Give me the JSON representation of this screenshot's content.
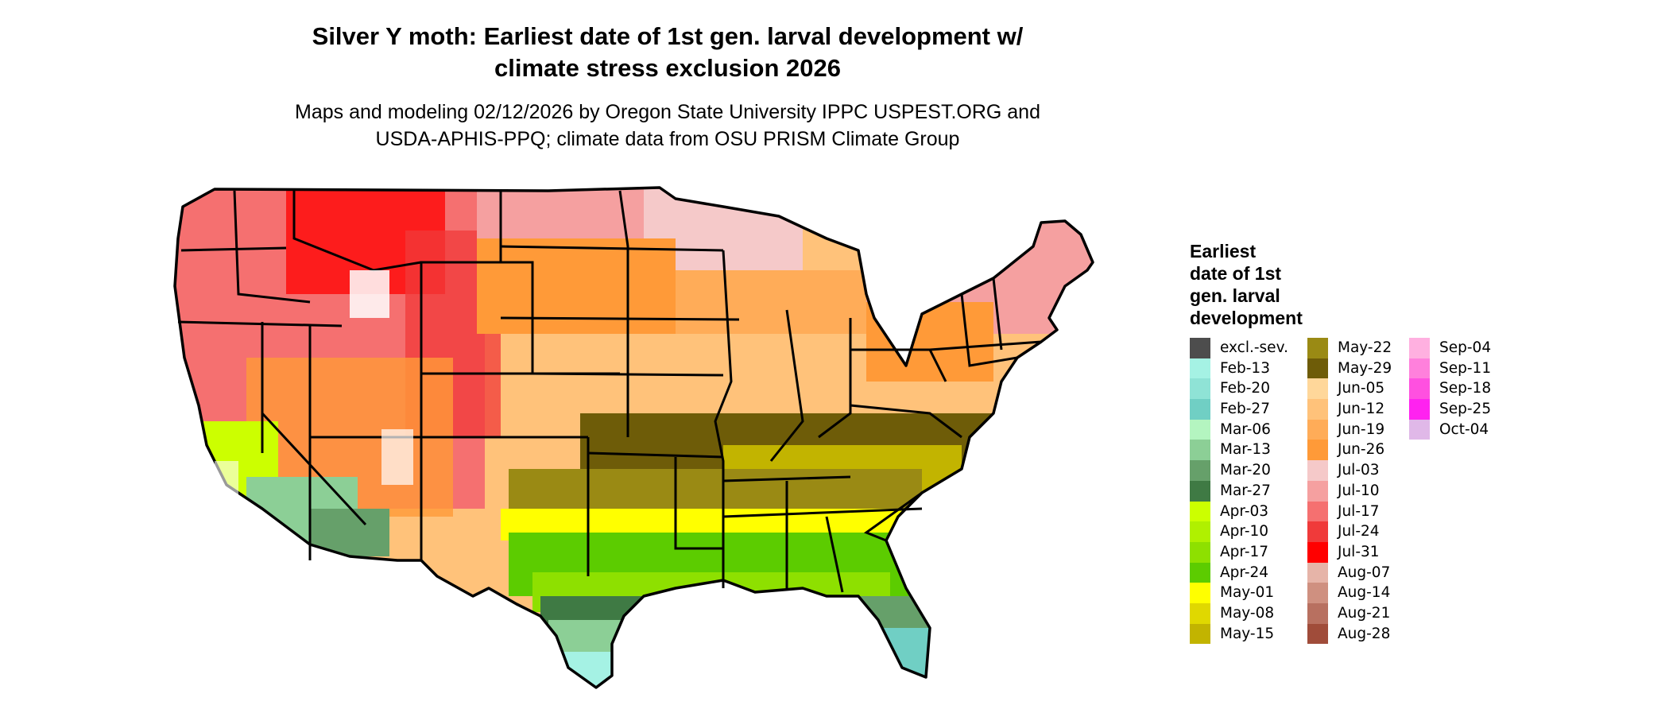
{
  "title_line1": "Silver Y moth: Earliest date of 1st gen. larval development w/",
  "title_line2": "climate stress exclusion 2026",
  "subtitle_line1": "Maps and modeling 02/12/2026 by Oregon State University IPPC USPEST.ORG and",
  "subtitle_line2": "USDA-APHIS-PPQ; climate data from OSU PRISM Climate Group",
  "legend": {
    "title_lines": [
      "Earliest",
      "date of 1st",
      "gen. larval",
      "development"
    ],
    "columns": [
      [
        {
          "label": "excl.-sev.",
          "color": "#4d4d4d"
        },
        {
          "label": "Feb-13",
          "color": "#a5f2e4"
        },
        {
          "label": "Feb-20",
          "color": "#8fe3d6"
        },
        {
          "label": "Feb-27",
          "color": "#70cfc4"
        },
        {
          "label": "Mar-06",
          "color": "#b4f5c0"
        },
        {
          "label": "Mar-13",
          "color": "#8ccf96"
        },
        {
          "label": "Mar-20",
          "color": "#66a06a"
        },
        {
          "label": "Mar-27",
          "color": "#3f7a44"
        },
        {
          "label": "Apr-03",
          "color": "#ccff00"
        },
        {
          "label": "Apr-10",
          "color": "#b0f000"
        },
        {
          "label": "Apr-17",
          "color": "#8ee000"
        },
        {
          "label": "Apr-24",
          "color": "#5ccc00"
        },
        {
          "label": "May-01",
          "color": "#ffff00"
        },
        {
          "label": "May-08",
          "color": "#e0d800"
        },
        {
          "label": "May-15",
          "color": "#c2b400"
        }
      ],
      [
        {
          "label": "May-22",
          "color": "#9a8a14"
        },
        {
          "label": "May-29",
          "color": "#6e5c08"
        },
        {
          "label": "Jun-05",
          "color": "#ffd79a"
        },
        {
          "label": "Jun-12",
          "color": "#ffc27a"
        },
        {
          "label": "Jun-19",
          "color": "#ffac58"
        },
        {
          "label": "Jun-26",
          "color": "#ff9a38"
        },
        {
          "label": "Jul-03",
          "color": "#f5c9c9"
        },
        {
          "label": "Jul-10",
          "color": "#f5a0a0"
        },
        {
          "label": "Jul-17",
          "color": "#f57070"
        },
        {
          "label": "Jul-24",
          "color": "#f03a3a"
        },
        {
          "label": "Jul-31",
          "color": "#ff0000"
        },
        {
          "label": "Aug-07",
          "color": "#e6b4a8"
        },
        {
          "label": "Aug-14",
          "color": "#cf9080"
        },
        {
          "label": "Aug-21",
          "color": "#b87060"
        },
        {
          "label": "Aug-28",
          "color": "#a04c3a"
        }
      ],
      [
        {
          "label": "Sep-04",
          "color": "#ffb0e0"
        },
        {
          "label": "Sep-11",
          "color": "#ff80dc"
        },
        {
          "label": "Sep-18",
          "color": "#ff50e0"
        },
        {
          "label": "Sep-25",
          "color": "#ff22f0"
        },
        {
          "label": "Oct-04",
          "color": "#e0b8e8"
        }
      ]
    ]
  }
}
